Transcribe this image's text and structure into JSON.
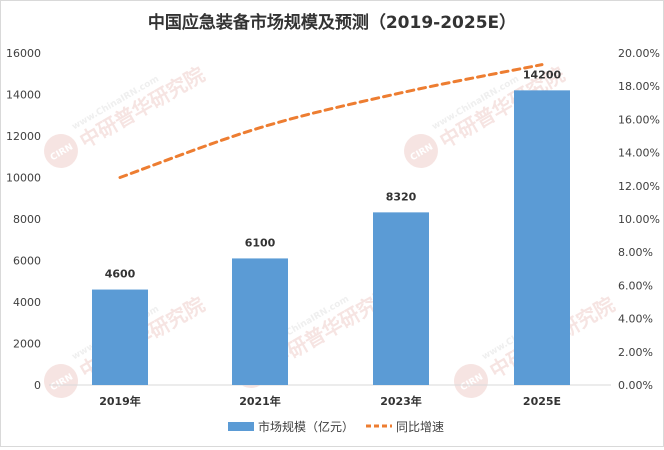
{
  "chart_data": {
    "type": "bar",
    "title": "中国应急装备市场规模及预测（2019-2025E）",
    "categories": [
      "2019年",
      "2021年",
      "2023年",
      "2025E"
    ],
    "series": [
      {
        "name": "市场规模（亿元）",
        "type": "bar",
        "axis": "left",
        "color": "#5b9bd5",
        "values": [
          4600,
          6100,
          8320,
          14200
        ],
        "labels": [
          "4600",
          "6100",
          "8320",
          "14200"
        ]
      },
      {
        "name": "同比增速",
        "type": "line",
        "axis": "right",
        "style": "dashed",
        "color": "#ed7d31",
        "values": [
          12.5,
          15.5,
          17.6,
          19.3
        ]
      }
    ],
    "y_left": {
      "min": 0,
      "max": 16000,
      "ticks": [
        "0",
        "2000",
        "4000",
        "6000",
        "8000",
        "10000",
        "12000",
        "14000",
        "16000"
      ]
    },
    "y_right": {
      "min": 0,
      "max": 20,
      "unit": "%",
      "ticks": [
        "0.00%",
        "2.00%",
        "4.00%",
        "6.00%",
        "8.00%",
        "10.00%",
        "12.00%",
        "14.00%",
        "16.00%",
        "18.00%",
        "20.00%"
      ]
    },
    "grid": false,
    "legend_position": "bottom"
  },
  "watermark": {
    "badge": "CIRN",
    "url": "www.ChinaIRN.com",
    "name": "中研普华研究院"
  }
}
